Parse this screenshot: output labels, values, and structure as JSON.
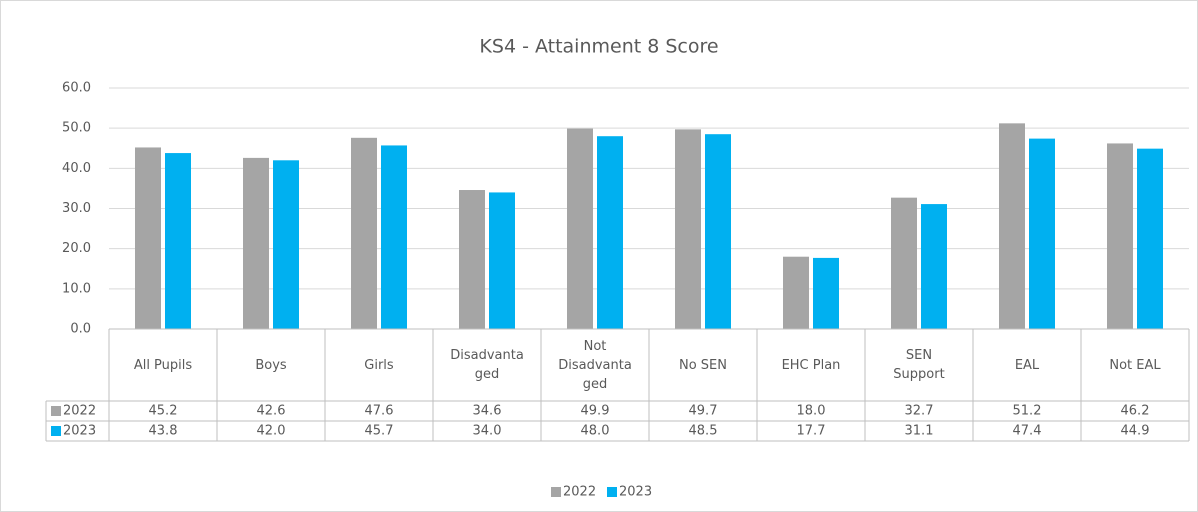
{
  "chart_data": {
    "type": "bar",
    "title": "KS4 - Attainment 8 Score",
    "categories": [
      "All Pupils",
      "Boys",
      "Girls",
      "Disadvantaged",
      "Not Disadvantaged",
      "No SEN",
      "EHC Plan",
      "SEN Support",
      "EAL",
      "Not EAL"
    ],
    "series": [
      {
        "name": "2022",
        "color": "#a5a5a5",
        "values": [
          45.2,
          42.6,
          47.6,
          34.6,
          49.9,
          49.7,
          18.0,
          32.7,
          51.2,
          46.2
        ],
        "value_labels": [
          "45.2",
          "42.6",
          "47.6",
          "34.6",
          "49.9",
          "49.7",
          "18.0",
          "32.7",
          "51.2",
          "46.2"
        ]
      },
      {
        "name": "2023",
        "color": "#00b0f0",
        "values": [
          43.8,
          42.0,
          45.7,
          34.0,
          48.0,
          48.5,
          17.7,
          31.1,
          47.4,
          44.9
        ],
        "value_labels": [
          "43.8",
          "42.0",
          "45.7",
          "34.0",
          "48.0",
          "48.5",
          "17.7",
          "31.1",
          "47.4",
          "44.9"
        ]
      }
    ],
    "ylim": [
      0,
      60
    ],
    "yticks": [
      {
        "value": 0,
        "label": "0.0"
      },
      {
        "value": 10,
        "label": "10.0"
      },
      {
        "value": 20,
        "label": "20.0"
      },
      {
        "value": 30,
        "label": "30.0"
      },
      {
        "value": 40,
        "label": "40.0"
      },
      {
        "value": 50,
        "label": "50.0"
      },
      {
        "value": 60,
        "label": "60.0"
      }
    ],
    "grid": true,
    "legend": "bottom",
    "data_table": true
  }
}
